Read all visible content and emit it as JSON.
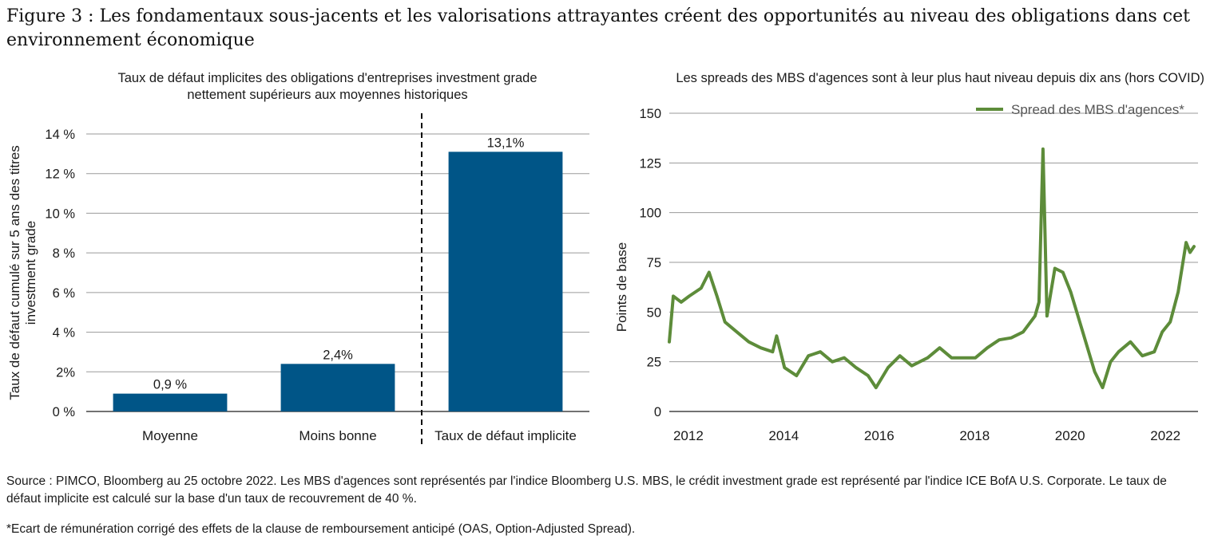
{
  "figure_title": "Figure 3 : Les fondamentaux sous-jacents et les valorisations attrayantes créent des opportunités au niveau des obligations dans cet environnement économique",
  "colors": {
    "bar": "#005587",
    "line": "#5d8c3a",
    "grid": "#9a9a9a",
    "axis": "#444444"
  },
  "chart_data": [
    {
      "type": "bar",
      "title": "Taux de défaut implicites des obligations d'entreprises investment grade nettement supérieurs aux moyennes historiques",
      "title_lines": [
        "Taux de défaut implicites des obligations d'entreprises investment grade",
        "nettement supérieurs aux moyennes historiques"
      ],
      "ylabel_lines": [
        "Taux de défaut cumulé sur 5 ans des titres",
        "investment grade"
      ],
      "categories": [
        "Moyenne",
        "Moins bonne",
        "Taux de défaut implicite"
      ],
      "values": [
        0.9,
        2.4,
        13.1
      ],
      "data_labels": [
        "0,9 %",
        "2,4%",
        "13,1%"
      ],
      "yticks": [
        0,
        2,
        4,
        6,
        8,
        10,
        12,
        14
      ],
      "ytick_labels": [
        "0 %",
        "2%",
        "4 %",
        "6 %",
        "8 %",
        "10 %",
        "12 %",
        "14 %"
      ],
      "ylim": [
        0,
        14
      ],
      "grid": true,
      "divider_after_category": 1
    },
    {
      "type": "line",
      "title": "Les spreads des MBS d'agences sont à leur plus haut niveau depuis dix ans (hors COVID)",
      "ylabel": "Points de base",
      "legend_position": "top-right",
      "xlim": [
        "2011-10",
        "2022-11"
      ],
      "ylim": [
        0,
        150
      ],
      "yticks": [
        0,
        25,
        50,
        75,
        100,
        125,
        150
      ],
      "xtick_labels": [
        "2012",
        "2014",
        "2016",
        "2018",
        "2020",
        "2022"
      ],
      "grid": true,
      "series": [
        {
          "name": "Spread des MBS d'agences*",
          "x": [
            "2011-10",
            "2011-11",
            "2012-01",
            "2012-03",
            "2012-06",
            "2012-08",
            "2012-10",
            "2012-12",
            "2013-03",
            "2013-06",
            "2013-09",
            "2013-12",
            "2014-01",
            "2014-03",
            "2014-06",
            "2014-09",
            "2014-12",
            "2015-03",
            "2015-06",
            "2015-09",
            "2015-12",
            "2016-02",
            "2016-05",
            "2016-08",
            "2016-11",
            "2017-03",
            "2017-06",
            "2017-09",
            "2017-12",
            "2018-03",
            "2018-06",
            "2018-09",
            "2018-12",
            "2019-03",
            "2019-06",
            "2019-07",
            "2019-08",
            "2019-09",
            "2019-10",
            "2019-11",
            "2020-01",
            "2020-03",
            "2020-06",
            "2020-09",
            "2020-11",
            "2021-01",
            "2021-03",
            "2021-06",
            "2021-09",
            "2021-12",
            "2022-02",
            "2022-04",
            "2022-06",
            "2022-08",
            "2022-09",
            "2022-10"
          ],
          "values": [
            35,
            58,
            55,
            58,
            62,
            70,
            58,
            45,
            40,
            35,
            32,
            30,
            38,
            22,
            18,
            28,
            30,
            25,
            27,
            22,
            18,
            12,
            22,
            28,
            23,
            27,
            32,
            27,
            27,
            27,
            32,
            36,
            37,
            40,
            48,
            55,
            132,
            48,
            60,
            72,
            70,
            60,
            40,
            20,
            12,
            25,
            30,
            35,
            28,
            30,
            40,
            45,
            60,
            85,
            80,
            83
          ]
        }
      ]
    }
  ],
  "source_note": "Source : PIMCO, Bloomberg au 25 octobre 2022. Les MBS d'agences sont représentés par l'indice Bloomberg U.S. MBS, le crédit investment grade est représenté par l'indice ICE BofA U.S. Corporate. Le taux de défaut implicite est calculé sur la base d'un taux de recouvrement de 40 %.",
  "footnote": "*Ecart de rémunération corrigé des effets de la clause de remboursement anticipé (OAS, Option-Adjusted Spread)."
}
